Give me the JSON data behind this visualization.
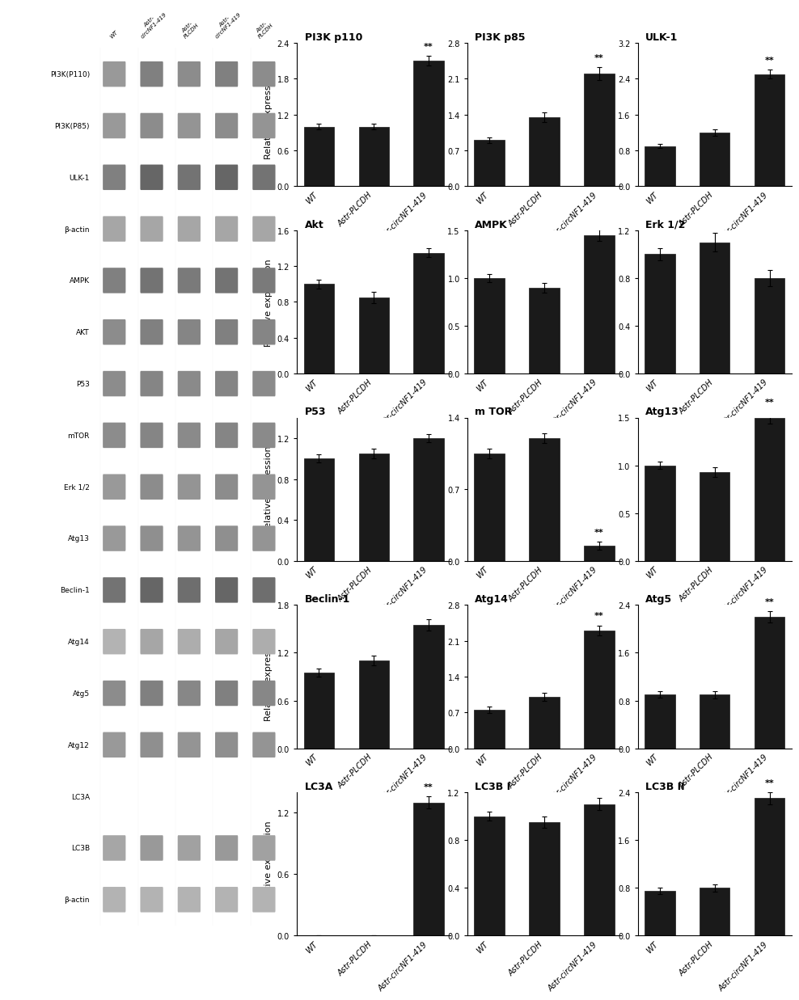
{
  "panels": [
    {
      "title": "PI3K p110",
      "values": [
        1.0,
        1.0,
        2.1
      ],
      "errors": [
        0.05,
        0.05,
        0.08
      ],
      "ylim": [
        0,
        2.4
      ],
      "yticks": [
        0.0,
        0.6,
        1.2,
        1.8,
        2.4
      ],
      "sig": [
        false,
        false,
        true
      ],
      "sig_bar": 2
    },
    {
      "title": "PI3K p85",
      "values": [
        0.9,
        1.35,
        2.2
      ],
      "errors": [
        0.05,
        0.1,
        0.12
      ],
      "ylim": [
        0,
        2.8
      ],
      "yticks": [
        0.0,
        0.7,
        1.4,
        2.1,
        2.8
      ],
      "sig": [
        false,
        false,
        true
      ],
      "sig_bar": 2
    },
    {
      "title": "ULK-1",
      "values": [
        0.9,
        1.2,
        2.5
      ],
      "errors": [
        0.05,
        0.07,
        0.1
      ],
      "ylim": [
        0,
        3.2
      ],
      "yticks": [
        0.0,
        0.8,
        1.6,
        2.4,
        3.2
      ],
      "sig": [
        false,
        false,
        true
      ],
      "sig_bar": 2
    },
    {
      "title": "Akt",
      "values": [
        1.0,
        0.85,
        1.35
      ],
      "errors": [
        0.05,
        0.06,
        0.05
      ],
      "ylim": [
        0,
        1.6
      ],
      "yticks": [
        0.0,
        0.4,
        0.8,
        1.2,
        1.6
      ],
      "sig": [
        false,
        false,
        false
      ],
      "sig_bar": -1
    },
    {
      "title": "AMPK",
      "values": [
        1.0,
        0.9,
        1.45
      ],
      "errors": [
        0.04,
        0.05,
        0.06
      ],
      "ylim": [
        0,
        1.5
      ],
      "yticks": [
        0.0,
        0.5,
        1.0,
        1.5
      ],
      "sig": [
        false,
        false,
        false
      ],
      "sig_bar": -1
    },
    {
      "title": "Erk 1/2",
      "values": [
        1.0,
        1.1,
        0.8
      ],
      "errors": [
        0.05,
        0.08,
        0.07
      ],
      "ylim": [
        0,
        1.2
      ],
      "yticks": [
        0.0,
        0.4,
        0.8,
        1.2
      ],
      "sig": [
        false,
        false,
        false
      ],
      "sig_bar": -1
    },
    {
      "title": "P53",
      "values": [
        1.0,
        1.05,
        1.2
      ],
      "errors": [
        0.04,
        0.05,
        0.04
      ],
      "ylim": [
        0,
        1.4
      ],
      "yticks": [
        0.0,
        0.4,
        0.8,
        1.2
      ],
      "sig": [
        false,
        false,
        false
      ],
      "sig_bar": -1
    },
    {
      "title": "m TOR",
      "values": [
        1.05,
        1.2,
        0.15
      ],
      "errors": [
        0.05,
        0.05,
        0.04
      ],
      "ylim": [
        0,
        1.4
      ],
      "yticks": [
        0.0,
        0.7,
        1.4
      ],
      "sig": [
        false,
        false,
        true
      ],
      "sig_bar": 2
    },
    {
      "title": "Atg13",
      "values": [
        1.0,
        0.93,
        1.5
      ],
      "errors": [
        0.04,
        0.05,
        0.06
      ],
      "ylim": [
        0,
        1.5
      ],
      "yticks": [
        0.0,
        0.5,
        1.0,
        1.5
      ],
      "sig": [
        false,
        false,
        true
      ],
      "sig_bar": 2
    },
    {
      "title": "Beclin-1",
      "values": [
        0.95,
        1.1,
        1.55
      ],
      "errors": [
        0.05,
        0.06,
        0.07
      ],
      "ylim": [
        0,
        1.8
      ],
      "yticks": [
        0.0,
        0.6,
        1.2,
        1.8
      ],
      "sig": [
        false,
        false,
        false
      ],
      "sig_bar": -1
    },
    {
      "title": "Atg14",
      "values": [
        0.75,
        1.0,
        2.3
      ],
      "errors": [
        0.06,
        0.08,
        0.1
      ],
      "ylim": [
        0,
        2.8
      ],
      "yticks": [
        0.0,
        0.7,
        1.4,
        2.1,
        2.8
      ],
      "sig": [
        false,
        false,
        true
      ],
      "sig_bar": 2
    },
    {
      "title": "Atg5",
      "values": [
        0.9,
        0.9,
        2.2
      ],
      "errors": [
        0.05,
        0.06,
        0.1
      ],
      "ylim": [
        0,
        2.4
      ],
      "yticks": [
        0.0,
        0.8,
        1.6,
        2.4
      ],
      "sig": [
        false,
        false,
        true
      ],
      "sig_bar": 2
    },
    {
      "title": "LC3A",
      "values": [
        0.0,
        0.0,
        1.3
      ],
      "errors": [
        0.0,
        0.0,
        0.06
      ],
      "ylim": [
        0,
        1.4
      ],
      "yticks": [
        0.0,
        0.6,
        1.2
      ],
      "sig": [
        false,
        false,
        true
      ],
      "sig_bar": 2
    },
    {
      "title": "LC3B I",
      "values": [
        1.0,
        0.95,
        1.1
      ],
      "errors": [
        0.04,
        0.05,
        0.05
      ],
      "ylim": [
        0,
        1.2
      ],
      "yticks": [
        0.0,
        0.4,
        0.8,
        1.2
      ],
      "sig": [
        false,
        false,
        false
      ],
      "sig_bar": -1
    },
    {
      "title": "LC3B II",
      "values": [
        0.75,
        0.8,
        2.3
      ],
      "errors": [
        0.05,
        0.06,
        0.1
      ],
      "ylim": [
        0,
        2.4
      ],
      "yticks": [
        0.0,
        0.8,
        1.6,
        2.4
      ],
      "sig": [
        false,
        false,
        true
      ],
      "sig_bar": 2
    }
  ],
  "categories": [
    "WT",
    "Astr-PLCDH",
    "Astr-circNF1-419"
  ],
  "bar_color": "#1a1a1a",
  "bar_width": 0.55,
  "ylabel": "Relative expression",
  "tick_fontsize": 7,
  "label_fontsize": 8,
  "title_fontsize": 9
}
